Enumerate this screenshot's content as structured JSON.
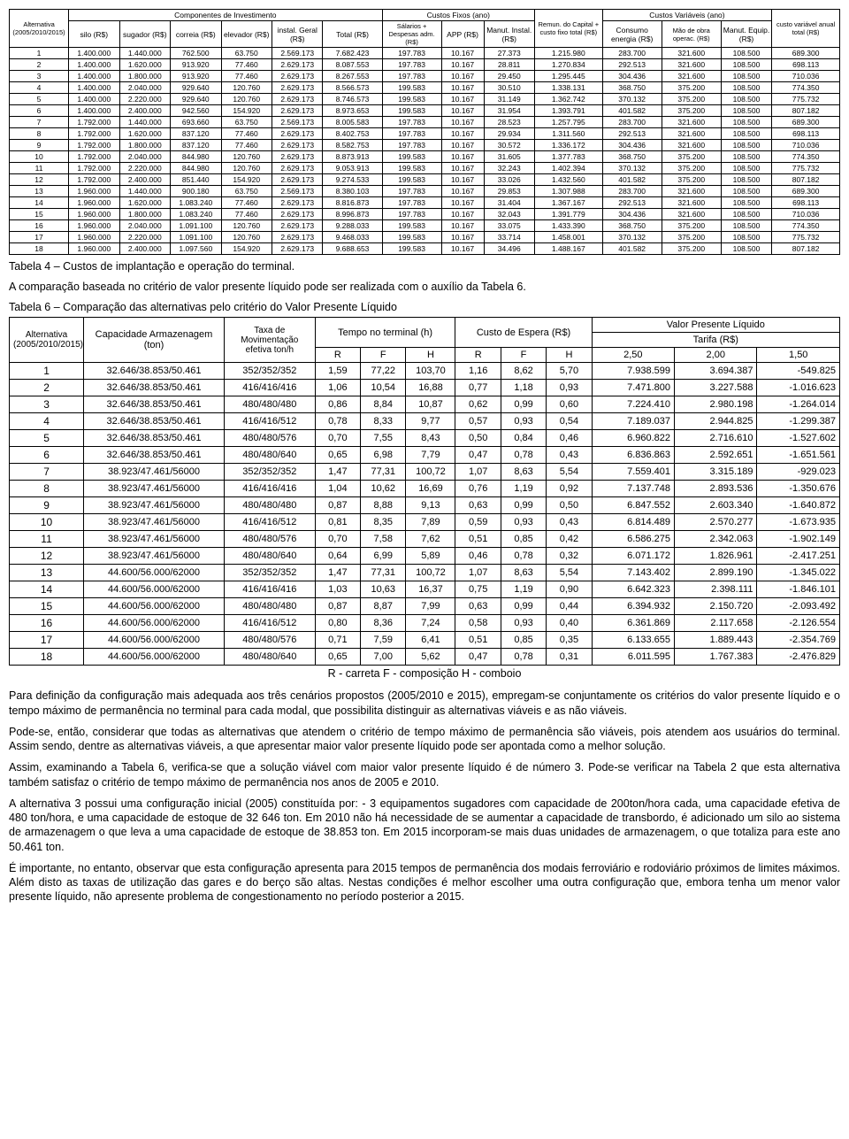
{
  "t1": {
    "group_headers": [
      "Componentes de Investimento",
      "Custos Fixos (ano)",
      "",
      "Custos Variáveis (ano)",
      ""
    ],
    "headers": [
      "Alternativa (2005/2010/2015)",
      "silo (R$)",
      "sugador (R$)",
      "correia (R$)",
      "elevador (R$)",
      "instal. Geral (R$)",
      "Total (R$)",
      "Sálarios + Despesas adm. (R$)",
      "APP (R$)",
      "Manut. Instal. (R$)",
      "Remun. do Capital + custo fixo total (R$)",
      "Consumo energia (R$)",
      "Mão de obra operac. (R$)",
      "Manut. Equip. (R$)",
      "custo variável anual total (R$)"
    ],
    "rows": [
      [
        "1",
        "1.400.000",
        "1.440.000",
        "762.500",
        "63.750",
        "2.569.173",
        "7.682.423",
        "197.783",
        "10.167",
        "27.373",
        "1.215.980",
        "283.700",
        "321.600",
        "108.500",
        "689.300"
      ],
      [
        "2",
        "1.400.000",
        "1.620.000",
        "913.920",
        "77.460",
        "2.629.173",
        "8.087.553",
        "197.783",
        "10.167",
        "28.811",
        "1.270.834",
        "292.513",
        "321.600",
        "108.500",
        "698.113"
      ],
      [
        "3",
        "1.400.000",
        "1.800.000",
        "913.920",
        "77.460",
        "2.629.173",
        "8.267.553",
        "197.783",
        "10.167",
        "29.450",
        "1.295.445",
        "304.436",
        "321.600",
        "108.500",
        "710.036"
      ],
      [
        "4",
        "1.400.000",
        "2.040.000",
        "929.640",
        "120.760",
        "2.629.173",
        "8.566.573",
        "199.583",
        "10.167",
        "30.510",
        "1.338.131",
        "368.750",
        "375.200",
        "108.500",
        "774.350"
      ],
      [
        "5",
        "1.400.000",
        "2.220.000",
        "929.640",
        "120.760",
        "2.629.173",
        "8.746.573",
        "199.583",
        "10.167",
        "31.149",
        "1.362.742",
        "370.132",
        "375.200",
        "108.500",
        "775.732"
      ],
      [
        "6",
        "1.400.000",
        "2.400.000",
        "942.560",
        "154.920",
        "2.629.173",
        "8.973.653",
        "199.583",
        "10.167",
        "31.954",
        "1.393.791",
        "401.582",
        "375.200",
        "108.500",
        "807.182"
      ],
      [
        "7",
        "1.792.000",
        "1.440.000",
        "693.660",
        "63.750",
        "2.569.173",
        "8.005.583",
        "197.783",
        "10.167",
        "28.523",
        "1.257.795",
        "283.700",
        "321.600",
        "108.500",
        "689.300"
      ],
      [
        "8",
        "1.792.000",
        "1.620.000",
        "837.120",
        "77.460",
        "2.629.173",
        "8.402.753",
        "197.783",
        "10.167",
        "29.934",
        "1.311.560",
        "292.513",
        "321.600",
        "108.500",
        "698.113"
      ],
      [
        "9",
        "1.792.000",
        "1.800.000",
        "837.120",
        "77.460",
        "2.629.173",
        "8.582.753",
        "197.783",
        "10.167",
        "30.572",
        "1.336.172",
        "304.436",
        "321.600",
        "108.500",
        "710.036"
      ],
      [
        "10",
        "1.792.000",
        "2.040.000",
        "844.980",
        "120.760",
        "2.629.173",
        "8.873.913",
        "199.583",
        "10.167",
        "31.605",
        "1.377.783",
        "368.750",
        "375.200",
        "108.500",
        "774.350"
      ],
      [
        "11",
        "1.792.000",
        "2.220.000",
        "844.980",
        "120.760",
        "2.629.173",
        "9.053.913",
        "199.583",
        "10.167",
        "32.243",
        "1.402.394",
        "370.132",
        "375.200",
        "108.500",
        "775.732"
      ],
      [
        "12",
        "1.792.000",
        "2.400.000",
        "851.440",
        "154.920",
        "2.629.173",
        "9.274.533",
        "199.583",
        "10.167",
        "33.026",
        "1.432.560",
        "401.582",
        "375.200",
        "108.500",
        "807.182"
      ],
      [
        "13",
        "1.960.000",
        "1.440.000",
        "900.180",
        "63.750",
        "2.569.173",
        "8.380.103",
        "197.783",
        "10.167",
        "29.853",
        "1.307.988",
        "283.700",
        "321.600",
        "108.500",
        "689.300"
      ],
      [
        "14",
        "1.960.000",
        "1.620.000",
        "1.083.240",
        "77.460",
        "2.629.173",
        "8.816.873",
        "197.783",
        "10.167",
        "31.404",
        "1.367.167",
        "292.513",
        "321.600",
        "108.500",
        "698.113"
      ],
      [
        "15",
        "1.960.000",
        "1.800.000",
        "1.083.240",
        "77.460",
        "2.629.173",
        "8.996.873",
        "197.783",
        "10.167",
        "32.043",
        "1.391.779",
        "304.436",
        "321.600",
        "108.500",
        "710.036"
      ],
      [
        "16",
        "1.960.000",
        "2.040.000",
        "1.091.100",
        "120.760",
        "2.629.173",
        "9.288.033",
        "199.583",
        "10.167",
        "33.075",
        "1.433.390",
        "368.750",
        "375.200",
        "108.500",
        "774.350"
      ],
      [
        "17",
        "1.960.000",
        "2.220.000",
        "1.091.100",
        "120.760",
        "2.629.173",
        "9.468.033",
        "199.583",
        "10.167",
        "33.714",
        "1.458.001",
        "370.132",
        "375.200",
        "108.500",
        "775.732"
      ],
      [
        "18",
        "1.960.000",
        "2.400.000",
        "1.097.560",
        "154.920",
        "2.629.173",
        "9.688.653",
        "199.583",
        "10.167",
        "34.496",
        "1.488.167",
        "401.582",
        "375.200",
        "108.500",
        "807.182"
      ]
    ]
  },
  "captions": {
    "c1": "Tabela 4 – Custos de implantação e operação do terminal.",
    "p1": "A comparação baseada no critério de valor presente líquido pode ser realizada com o auxílio da Tabela 6.",
    "c2": "Tabela 6 – Comparação das alternativas pelo critério do Valor Presente Líquido"
  },
  "t2": {
    "top": [
      "Alternativa (2005/2010/2015)",
      "Capacidade Armazenagem (ton)",
      "Taxa de Movimentação efetiva ton/h",
      "Tempo no terminal (h)",
      "Custo de Espera (R$)",
      "Valor Presente Líquido"
    ],
    "mid": [
      "Tarifa (R$)"
    ],
    "sub": [
      "R",
      "F",
      "H",
      "R",
      "F",
      "H",
      "2,50",
      "2,00",
      "1,50"
    ],
    "rows": [
      [
        "1",
        "32.646/38.853/50.461",
        "352/352/352",
        "1,59",
        "77,22",
        "103,70",
        "1,16",
        "8,62",
        "5,70",
        "7.938.599",
        "3.694.387",
        "-549.825"
      ],
      [
        "2",
        "32.646/38.853/50.461",
        "416/416/416",
        "1,06",
        "10,54",
        "16,88",
        "0,77",
        "1,18",
        "0,93",
        "7.471.800",
        "3.227.588",
        "-1.016.623"
      ],
      [
        "3",
        "32.646/38.853/50.461",
        "480/480/480",
        "0,86",
        "8,84",
        "10,87",
        "0,62",
        "0,99",
        "0,60",
        "7.224.410",
        "2.980.198",
        "-1.264.014"
      ],
      [
        "4",
        "32.646/38.853/50.461",
        "416/416/512",
        "0,78",
        "8,33",
        "9,77",
        "0,57",
        "0,93",
        "0,54",
        "7.189.037",
        "2.944.825",
        "-1.299.387"
      ],
      [
        "5",
        "32.646/38.853/50.461",
        "480/480/576",
        "0,70",
        "7,55",
        "8,43",
        "0,50",
        "0,84",
        "0,46",
        "6.960.822",
        "2.716.610",
        "-1.527.602"
      ],
      [
        "6",
        "32.646/38.853/50.461",
        "480/480/640",
        "0,65",
        "6,98",
        "7,79",
        "0,47",
        "0,78",
        "0,43",
        "6.836.863",
        "2.592.651",
        "-1.651.561"
      ],
      [
        "7",
        "38.923/47.461/56000",
        "352/352/352",
        "1,47",
        "77,31",
        "100,72",
        "1,07",
        "8,63",
        "5,54",
        "7.559.401",
        "3.315.189",
        "-929.023"
      ],
      [
        "8",
        "38.923/47.461/56000",
        "416/416/416",
        "1,04",
        "10,62",
        "16,69",
        "0,76",
        "1,19",
        "0,92",
        "7.137.748",
        "2.893.536",
        "-1.350.676"
      ],
      [
        "9",
        "38.923/47.461/56000",
        "480/480/480",
        "0,87",
        "8,88",
        "9,13",
        "0,63",
        "0,99",
        "0,50",
        "6.847.552",
        "2.603.340",
        "-1.640.872"
      ],
      [
        "10",
        "38.923/47.461/56000",
        "416/416/512",
        "0,81",
        "8,35",
        "7,89",
        "0,59",
        "0,93",
        "0,43",
        "6.814.489",
        "2.570.277",
        "-1.673.935"
      ],
      [
        "11",
        "38.923/47.461/56000",
        "480/480/576",
        "0,70",
        "7,58",
        "7,62",
        "0,51",
        "0,85",
        "0,42",
        "6.586.275",
        "2.342.063",
        "-1.902.149"
      ],
      [
        "12",
        "38.923/47.461/56000",
        "480/480/640",
        "0,64",
        "6,99",
        "5,89",
        "0,46",
        "0,78",
        "0,32",
        "6.071.172",
        "1.826.961",
        "-2.417.251"
      ],
      [
        "13",
        "44.600/56.000/62000",
        "352/352/352",
        "1,47",
        "77,31",
        "100,72",
        "1,07",
        "8,63",
        "5,54",
        "7.143.402",
        "2.899.190",
        "-1.345.022"
      ],
      [
        "14",
        "44.600/56.000/62000",
        "416/416/416",
        "1,03",
        "10,63",
        "16,37",
        "0,75",
        "1,19",
        "0,90",
        "6.642.323",
        "2.398.111",
        "-1.846.101"
      ],
      [
        "15",
        "44.600/56.000/62000",
        "480/480/480",
        "0,87",
        "8,87",
        "7,99",
        "0,63",
        "0,99",
        "0,44",
        "6.394.932",
        "2.150.720",
        "-2.093.492"
      ],
      [
        "16",
        "44.600/56.000/62000",
        "416/416/512",
        "0,80",
        "8,36",
        "7,24",
        "0,58",
        "0,93",
        "0,40",
        "6.361.869",
        "2.117.658",
        "-2.126.554"
      ],
      [
        "17",
        "44.600/56.000/62000",
        "480/480/576",
        "0,71",
        "7,59",
        "6,41",
        "0,51",
        "0,85",
        "0,35",
        "6.133.655",
        "1.889.443",
        "-2.354.769"
      ],
      [
        "18",
        "44.600/56.000/62000",
        "480/480/640",
        "0,65",
        "7,00",
        "5,62",
        "0,47",
        "0,78",
        "0,31",
        "6.011.595",
        "1.767.383",
        "-2.476.829"
      ]
    ],
    "legend": "R - carreta   F - composição   H - comboio"
  },
  "paras": [
    "Para definição da configuração mais adequada aos três cenários propostos (2005/2010 e 2015), empregam-se conjuntamente os critérios do valor presente líquido e o tempo máximo de permanência no terminal para cada modal, que possibilita distinguir as alternativas viáveis e as não viáveis.",
    "Pode-se, então, considerar que todas as alternativas que atendem o critério de tempo máximo de permanência são viáveis, pois atendem aos usuários do terminal. Assim sendo, dentre as alternativas viáveis, a que apresentar maior valor presente líquido pode ser apontada como a melhor solução.",
    "Assim, examinando a Tabela 6, verifica-se que a solução viável com maior valor presente líquido é de número 3. Pode-se verificar na Tabela 2 que esta alternativa também satisfaz o critério de tempo máximo de permanência nos anos de 2005 e 2010.",
    "A alternativa 3 possui uma configuração inicial (2005) constituída por: - 3 equipamentos sugadores com capacidade de 200ton/hora cada, uma capacidade efetiva de 480 ton/hora, e uma capacidade de estoque de 32 646 ton. Em 2010 não há necessidade de se aumentar a capacidade de transbordo, é adicionado um silo ao sistema de armazenagem o que leva a uma capacidade de estoque de 38.853 ton. Em 2015 incorporam-se mais duas unidades de armazenagem, o que totaliza para este ano 50.461 ton.",
    "É importante, no entanto, observar que esta configuração apresenta para 2015 tempos de permanência dos modais ferroviário e rodoviário próximos de limites máximos. Além disto as taxas de utilização das gares e do berço são altas. Nestas condições é melhor escolher uma outra configuração que, embora tenha um menor valor presente líquido, não apresente problema de congestionamento no período posterior a 2015."
  ]
}
